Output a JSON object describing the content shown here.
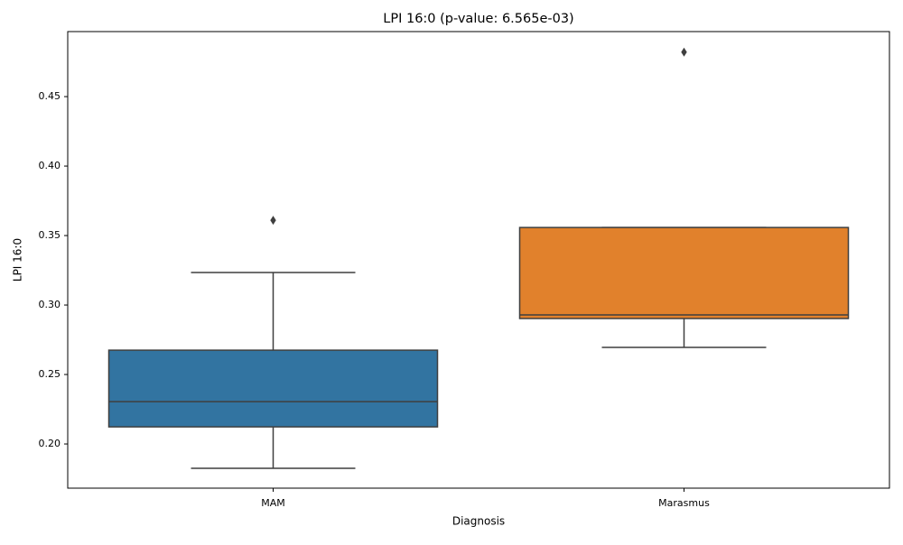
{
  "chart_data": {
    "type": "box",
    "title": "LPI 16:0 (p-value: 6.565e-03)",
    "x_label": "Diagnosis",
    "y_label": "LPI 16:0",
    "categories": [
      "MAM",
      "Marasmus"
    ],
    "colors": [
      "#3274a1",
      "#e1812c"
    ],
    "boxes": [
      {
        "min": 0.1825,
        "q1": 0.2123,
        "median": 0.2305,
        "q3": 0.2675,
        "max": 0.3234,
        "outliers": [
          0.361
        ]
      },
      {
        "min": 0.2695,
        "q1": 0.2903,
        "median": 0.2929,
        "q3": 0.3558,
        "max": 0.3558,
        "outliers": [
          0.482
        ]
      }
    ],
    "ylim": [
      0.1682,
      0.4968
    ],
    "yticks": [
      {
        "value": 0.2,
        "label": "0.20"
      },
      0.25,
      {
        "value": 0.3,
        "label": "0.30"
      },
      0.35,
      {
        "value": 0.4,
        "label": "0.40"
      },
      0.45
    ],
    "grid": false
  }
}
